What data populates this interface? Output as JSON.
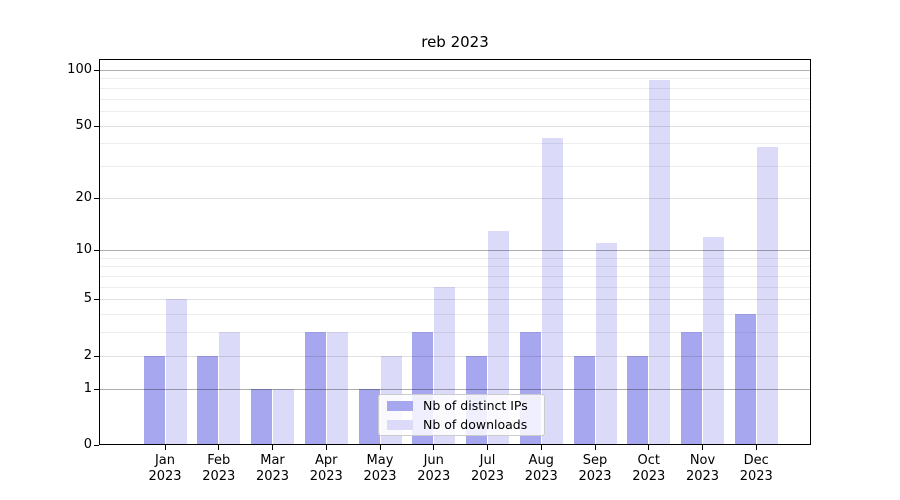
{
  "title": "reb 2023",
  "chart_data": {
    "type": "bar",
    "title": "reb 2023",
    "categories": [
      "Jan",
      "Feb",
      "Mar",
      "Apr",
      "May",
      "Jun",
      "Jul",
      "Aug",
      "Sep",
      "Oct",
      "Nov",
      "Dec"
    ],
    "category_year": "2023",
    "series": [
      {
        "name": "Nb of distinct IPs",
        "color": "#a7a7f0",
        "values": [
          2,
          2,
          1,
          3,
          1,
          3,
          2,
          3,
          2,
          2,
          3,
          4
        ]
      },
      {
        "name": "Nb of downloads",
        "color": "#dbdbf9",
        "values": [
          5,
          3,
          1,
          3,
          2,
          6,
          13,
          43,
          11,
          88,
          12,
          38
        ]
      }
    ],
    "yscale": "log1p",
    "ylim": [
      0,
      100
    ],
    "yticks": [
      100,
      50,
      20,
      10,
      5,
      2,
      1,
      0
    ],
    "grid_major": [
      1,
      10,
      100
    ],
    "grid_mid": [
      2,
      5,
      20,
      50
    ],
    "grid_minor": [
      3,
      4,
      6,
      7,
      8,
      9,
      30,
      40,
      60,
      70,
      80,
      90
    ],
    "grid": true,
    "legend_position": "lower center"
  }
}
